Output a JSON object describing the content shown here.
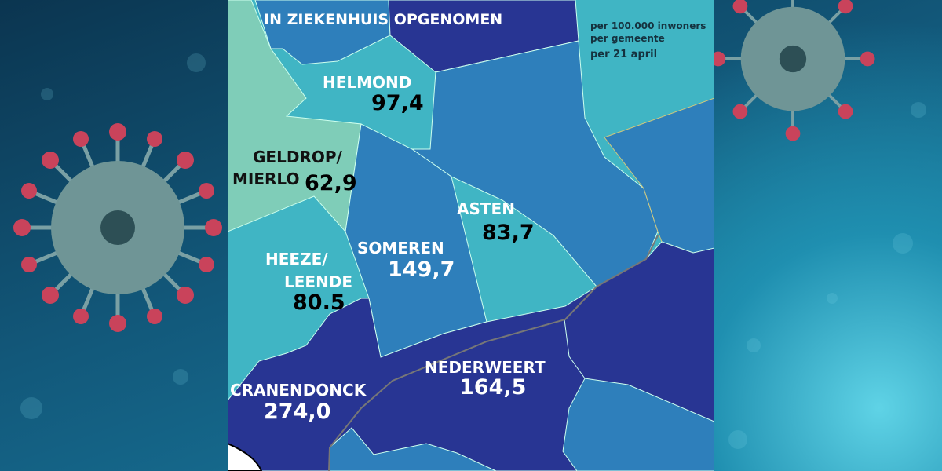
{
  "title": "IN ZIEKENHUIS OPGENOMEN",
  "legend": {
    "line1": "per 100.000 inwoners",
    "line2": "per gemeente",
    "line3": "per 21 april"
  },
  "colors": {
    "navy": "#283593",
    "blue": "#2e7fbb",
    "teal": "#40b5c4",
    "mint": "#7fcdb8",
    "background": "#12587a"
  },
  "municipalities": [
    {
      "name": "HELMOND",
      "value": "97,4"
    },
    {
      "name": "GELDROP/",
      "name2": "MIERLO",
      "value": "62,9"
    },
    {
      "name": "ASTEN",
      "value": "83,7"
    },
    {
      "name": "SOMEREN",
      "value": "149,7"
    },
    {
      "name": "HEEZE/",
      "name2": "LEENDE",
      "value": "80.5"
    },
    {
      "name": "NEDERWEERT",
      "value": "164,5"
    },
    {
      "name": "CRANENDONCK",
      "value": "274,0"
    }
  ]
}
